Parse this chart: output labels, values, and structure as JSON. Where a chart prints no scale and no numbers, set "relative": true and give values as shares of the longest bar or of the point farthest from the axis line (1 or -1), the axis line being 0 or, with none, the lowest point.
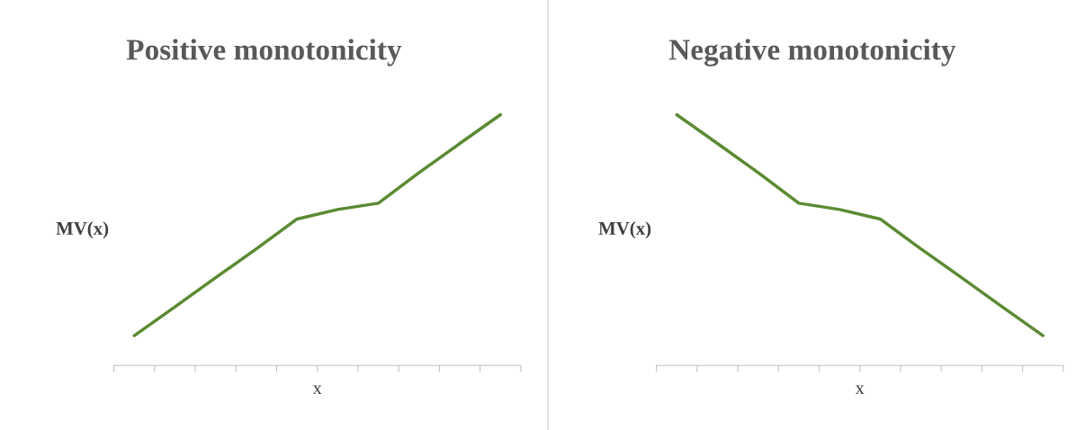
{
  "chart_data": [
    {
      "type": "line",
      "title": "Positive monotonicity",
      "xlabel": "x",
      "ylabel": "MV(x)",
      "relative": true,
      "categories": [
        null,
        null,
        null,
        null,
        null,
        null,
        null,
        null,
        null,
        null
      ],
      "series": [
        {
          "color": "#5a8a32",
          "values": [
            0.119,
            0.234,
            0.35,
            0.465,
            0.584,
            0.622,
            0.647,
            0.769,
            0.885,
            1
          ]
        }
      ],
      "grid": false,
      "legend": false,
      "marker": "none",
      "line_style": "solid"
    },
    {
      "type": "line",
      "title": "Negative monotonicity",
      "xlabel": "x",
      "ylabel": "MV(x)",
      "relative": true,
      "categories": [
        null,
        null,
        null,
        null,
        null,
        null,
        null,
        null,
        null,
        null
      ],
      "series": [
        {
          "color": "#5a8a32",
          "values": [
            1,
            0.885,
            0.769,
            0.647,
            0.622,
            0.584,
            0.465,
            0.35,
            0.234,
            0.119
          ]
        }
      ],
      "grid": false,
      "legend": false,
      "marker": "none",
      "line_style": "solid"
    }
  ]
}
